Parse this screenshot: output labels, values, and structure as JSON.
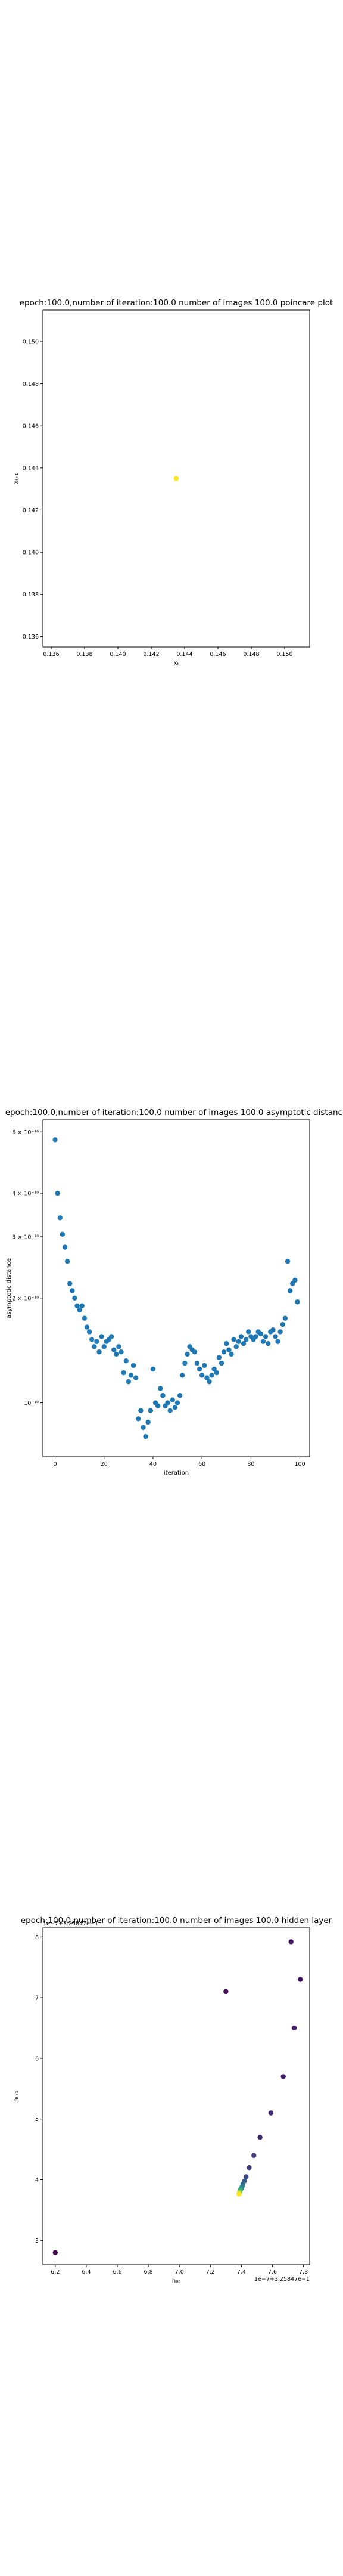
{
  "chart_data": [
    {
      "type": "scatter",
      "title": "epoch:100.0,number of iteration:100.0 number of images 100.0 poincare plot",
      "xlabel": "xₜ",
      "ylabel": "xₜ₊₁",
      "xlim": [
        0.1355,
        0.1515
      ],
      "ylim": [
        0.1355,
        0.1515
      ],
      "xticks": [
        "0.136",
        "0.138",
        "0.140",
        "0.142",
        "0.144",
        "0.146",
        "0.148",
        "0.150"
      ],
      "yticks": [
        "0.136",
        "0.138",
        "0.140",
        "0.142",
        "0.144",
        "0.146",
        "0.148",
        "0.150"
      ],
      "points": [
        {
          "x": 0.1435,
          "y": 0.1435
        }
      ],
      "point_color": "#fde725"
    },
    {
      "type": "scatter",
      "title": "epoch:100.0,number of iteration:100.0  number of images 100.0 asymptotic distance",
      "xlabel": "iteration",
      "ylabel": "asymptotic distance",
      "y_scale": "log",
      "xlim": [
        -5,
        104
      ],
      "ylim": [
        7e-11,
        6.5e-10
      ],
      "xticks": [
        "0",
        "20",
        "40",
        "60",
        "80",
        "100"
      ],
      "yticks": [
        "10⁻¹⁰",
        "2 × 10⁻¹⁰",
        "3 × 10⁻¹⁰",
        "4 × 10⁻¹⁰",
        "6 × 10⁻¹⁰"
      ],
      "ytick_values": [
        1e-10,
        2e-10,
        3e-10,
        4e-10,
        6e-10
      ],
      "point_color": "#1f77b4",
      "x": [
        0,
        1,
        2,
        3,
        4,
        5,
        6,
        7,
        8,
        9,
        10,
        11,
        12,
        13,
        14,
        15,
        16,
        17,
        18,
        19,
        20,
        21,
        22,
        23,
        24,
        25,
        26,
        27,
        28,
        29,
        30,
        31,
        32,
        33,
        34,
        35,
        36,
        37,
        38,
        39,
        40,
        41,
        42,
        43,
        44,
        45,
        46,
        47,
        48,
        49,
        50,
        51,
        52,
        53,
        54,
        55,
        56,
        57,
        58,
        59,
        60,
        61,
        62,
        63,
        64,
        65,
        66,
        67,
        68,
        69,
        70,
        71,
        72,
        73,
        74,
        75,
        76,
        77,
        78,
        79,
        80,
        81,
        82,
        83,
        84,
        85,
        86,
        87,
        88,
        89,
        90,
        91,
        92,
        93,
        94,
        95,
        96,
        97,
        98,
        99
      ],
      "y": [
        5.7e-10,
        4e-10,
        3.4e-10,
        3.05e-10,
        2.8e-10,
        2.55e-10,
        2.2e-10,
        2.1e-10,
        2e-10,
        1.9e-10,
        1.85e-10,
        1.9e-10,
        1.75e-10,
        1.65e-10,
        1.6e-10,
        1.52e-10,
        1.45e-10,
        1.5e-10,
        1.4e-10,
        1.55e-10,
        1.45e-10,
        1.5e-10,
        1.52e-10,
        1.55e-10,
        1.42e-10,
        1.38e-10,
        1.45e-10,
        1.4e-10,
        1.22e-10,
        1.32e-10,
        1.15e-10,
        1.2e-10,
        1.28e-10,
        1.18e-10,
        9e-11,
        9.5e-11,
        8.5e-11,
        8e-11,
        8.8e-11,
        9.5e-11,
        1.25e-10,
        1e-10,
        9.8e-11,
        1.1e-10,
        1.05e-10,
        9.8e-11,
        1e-10,
        9.5e-11,
        1.02e-10,
        9.7e-11,
        1e-10,
        1.05e-10,
        1.2e-10,
        1.3e-10,
        1.38e-10,
        1.45e-10,
        1.42e-10,
        1.4e-10,
        1.3e-10,
        1.25e-10,
        1.2e-10,
        1.28e-10,
        1.18e-10,
        1.15e-10,
        1.2e-10,
        1.25e-10,
        1.22e-10,
        1.35e-10,
        1.3e-10,
        1.4e-10,
        1.48e-10,
        1.42e-10,
        1.38e-10,
        1.52e-10,
        1.45e-10,
        1.5e-10,
        1.55e-10,
        1.48e-10,
        1.52e-10,
        1.6e-10,
        1.55e-10,
        1.52e-10,
        1.55e-10,
        1.6e-10,
        1.58e-10,
        1.5e-10,
        1.55e-10,
        1.48e-10,
        1.6e-10,
        1.62e-10,
        1.55e-10,
        1.5e-10,
        1.6e-10,
        1.68e-10,
        1.75e-10,
        2.55e-10,
        2.1e-10,
        2.2e-10,
        2.25e-10,
        1.95e-10
      ]
    },
    {
      "type": "scatter",
      "title": "epoch:100.0,number of iteration:100.0  number of images 100.0 hidden layer",
      "xlabel": "h₍ₜ₎",
      "ylabel": "hₜ₊₁",
      "xlim": [
        6.12,
        7.84
      ],
      "ylim": [
        2.6,
        8.15
      ],
      "xticks": [
        "6.2",
        "6.4",
        "6.6",
        "6.8",
        "7.0",
        "7.2",
        "7.4",
        "7.6",
        "7.8"
      ],
      "yticks": [
        "3",
        "4",
        "5",
        "6",
        "7",
        "8"
      ],
      "x_offset_text": "1e−7+3.25847e−1",
      "y_offset_text": "1e−7+3.25847e−1",
      "colormap": "viridis",
      "points": [
        {
          "x": 6.2,
          "y": 2.8,
          "c": 0.0
        },
        {
          "x": 7.3,
          "y": 7.1,
          "c": 0.02
        },
        {
          "x": 7.72,
          "y": 7.92,
          "c": 0.04
        },
        {
          "x": 7.78,
          "y": 7.3,
          "c": 0.06
        },
        {
          "x": 7.74,
          "y": 6.5,
          "c": 0.08
        },
        {
          "x": 7.67,
          "y": 5.7,
          "c": 0.1
        },
        {
          "x": 7.59,
          "y": 5.1,
          "c": 0.12
        },
        {
          "x": 7.52,
          "y": 4.7,
          "c": 0.14
        },
        {
          "x": 7.48,
          "y": 4.4,
          "c": 0.16
        },
        {
          "x": 7.45,
          "y": 4.2,
          "c": 0.18
        },
        {
          "x": 7.43,
          "y": 4.05,
          "c": 0.22
        },
        {
          "x": 7.42,
          "y": 3.98,
          "c": 0.28
        },
        {
          "x": 7.41,
          "y": 3.93,
          "c": 0.34
        },
        {
          "x": 7.405,
          "y": 3.89,
          "c": 0.4
        },
        {
          "x": 7.4,
          "y": 3.86,
          "c": 0.48
        },
        {
          "x": 7.395,
          "y": 3.84,
          "c": 0.56
        },
        {
          "x": 7.392,
          "y": 3.82,
          "c": 0.64
        },
        {
          "x": 7.39,
          "y": 3.8,
          "c": 0.72
        },
        {
          "x": 7.388,
          "y": 3.79,
          "c": 0.8
        },
        {
          "x": 7.386,
          "y": 3.78,
          "c": 0.88
        },
        {
          "x": 7.385,
          "y": 3.77,
          "c": 0.94
        },
        {
          "x": 7.384,
          "y": 3.765,
          "c": 1.0
        }
      ]
    }
  ]
}
